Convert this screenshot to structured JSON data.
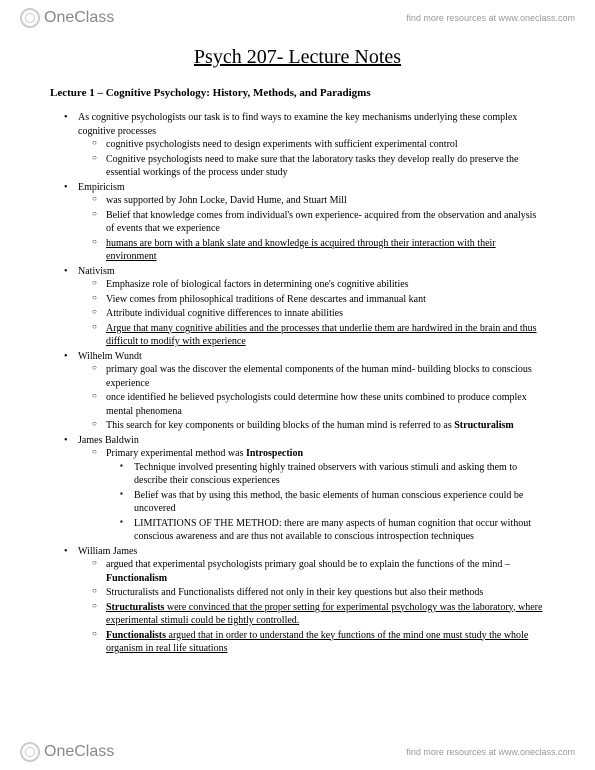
{
  "brand": {
    "name": "OneClass",
    "tagline": "find more resources at www.oneclass.com"
  },
  "title": "Psych 207- Lecture Notes",
  "lecture_heading": "Lecture 1 – Cognitive Psychology: History, Methods, and Paradigms",
  "items": [
    {
      "text": "As cognitive psychologists our task is to find ways to examine the key mechanisms underlying these complex cognitive processes",
      "children": [
        {
          "text": "cognitive psychologists need to design experiments with sufficient experimental control"
        },
        {
          "text": "Cognitive psychologists need to make sure that the laboratory tasks they develop really do preserve the essential workings of the process under study"
        }
      ]
    },
    {
      "text": "Empiricism",
      "children": [
        {
          "text": "was supported by John Locke, David Hume, and Stuart Mill"
        },
        {
          "text": "Belief that knowledge comes from individual's own experience- acquired from the observation and analysis of events that we experience"
        },
        {
          "text": "humans are born with a blank slate and knowledge is acquired through their interaction with their environment",
          "underline": true
        }
      ]
    },
    {
      "text": "Nativism",
      "children": [
        {
          "text": "Emphasize role of biological factors in determining one's cognitive abilities"
        },
        {
          "text": "View comes from philosophical traditions of Rene descartes and immanual kant"
        },
        {
          "text": "Attribute individual cognitive differences to innate abilities"
        },
        {
          "text": "Argue that many cognitive abilities and the processes that underlie them are hardwired in the brain and thus difficult to modify with experience",
          "underline": true
        }
      ]
    },
    {
      "text": "Wilhelm Wundt",
      "children": [
        {
          "text": "primary goal was the discover the elemental components of the human mind- building blocks to conscious experience"
        },
        {
          "text": "once identified he believed psychologists could determine how these units combined to produce complex mental phenomena"
        },
        {
          "text_pre": "This search for key components or building blocks of the human mind is referred to as ",
          "bold_tail": "Structuralism"
        }
      ]
    },
    {
      "text": "James Baldwin",
      "children": [
        {
          "text_pre": "Primary experimental method was ",
          "bold_tail": "Introspection",
          "sub": [
            {
              "text": "Technique involved presenting highly trained observers with various stimuli and asking them to describe their conscious experiences"
            },
            {
              "text": "Belief was that by using this method, the basic elements of human conscious experience could be uncovered"
            },
            {
              "text": "LIMITATIONS OF THE METHOD: there are many aspects of human cognition that occur without conscious awareness and are thus not available to conscious introspection techniques"
            }
          ]
        }
      ]
    },
    {
      "text": "William James",
      "children": [
        {
          "text_pre": "argued that experimental psychologists primary goal should be to explain the functions of the mind – ",
          "bold_tail": "Functionalism"
        },
        {
          "text": "Structuralists and Functionalists differed not only in their key questions but also their methods"
        },
        {
          "bold_head_u": "Structuralists",
          "text_tail_u": " were convinced that the proper setting for experimental psychology was the laboratory, where experimental stimuli could be tightly controlled."
        },
        {
          "bold_head_u": "Functionalists",
          "text_tail_u": " argued that in order to understand the key functions of the mind one must study the whole organism in real life situations"
        }
      ]
    }
  ]
}
